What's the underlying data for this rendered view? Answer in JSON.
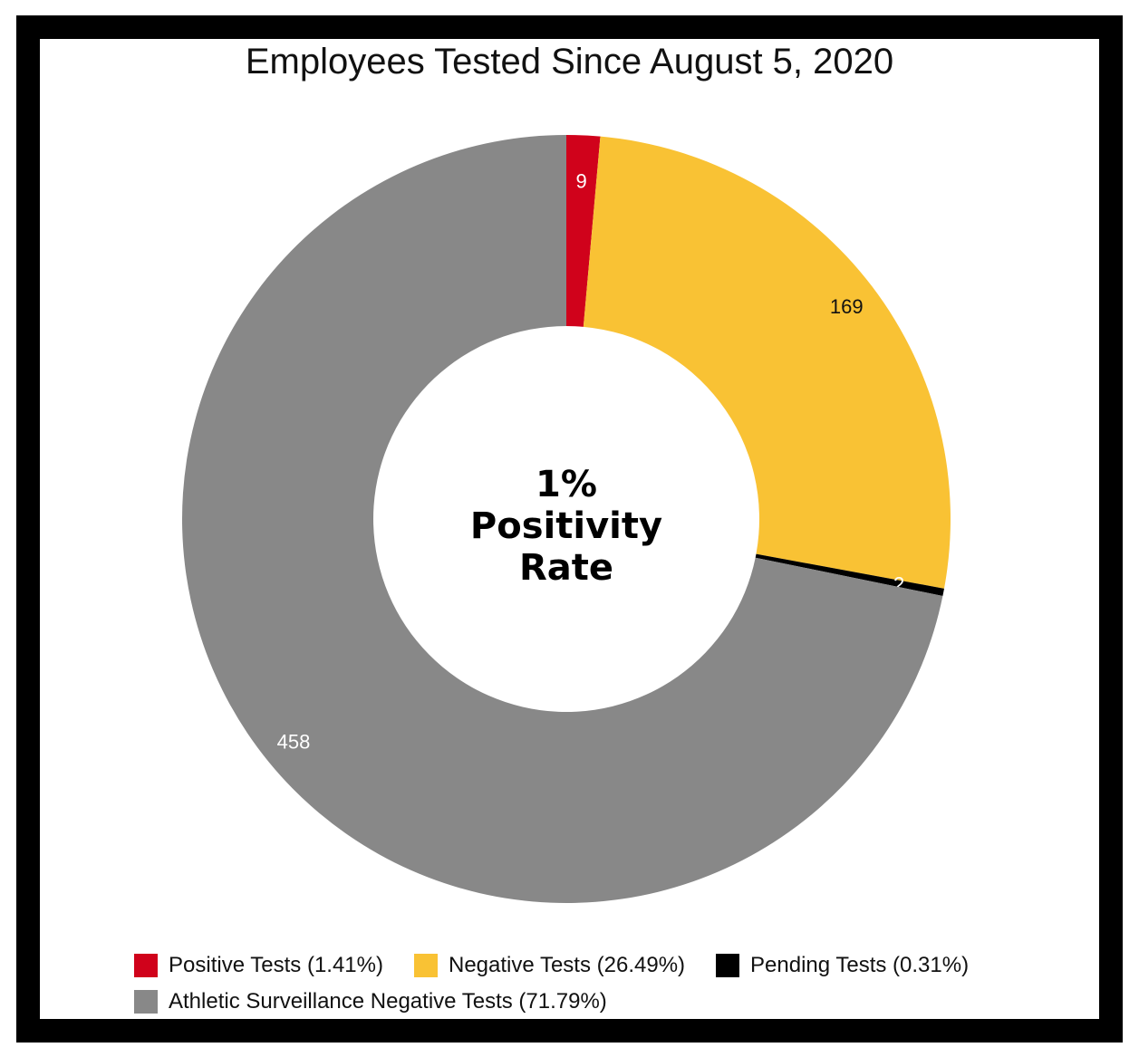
{
  "chart_data": {
    "type": "pie",
    "style": "donut",
    "title": "Employees Tested Since August 5, 2020",
    "center_text": [
      "1%",
      "Positivity",
      "Rate"
    ],
    "categories": [
      "Positive Tests (1.41%)",
      "Negative Tests (26.49%)",
      "Pending Tests (0.31%)",
      "Athletic Surveillance Negative Tests (71.79%)"
    ],
    "values": [
      9,
      169,
      2,
      458
    ],
    "data_labels": [
      "9",
      "169",
      "2",
      "458"
    ],
    "colors": [
      "#d0021b",
      "#f9c234",
      "#000000",
      "#888888"
    ],
    "label_colors": [
      "#ffffff",
      "#111111",
      "#ffffff",
      "#ffffff"
    ],
    "legend_position": "bottom"
  }
}
